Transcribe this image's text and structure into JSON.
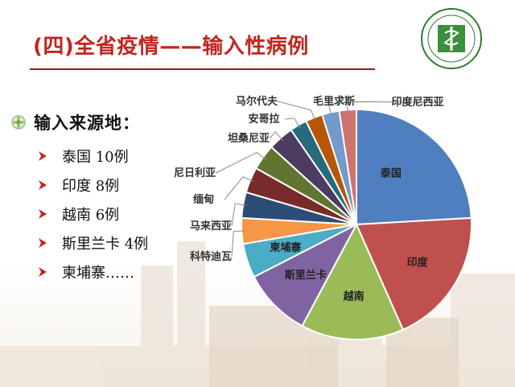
{
  "slide": {
    "title": "(四)全省疫情——输入性病例",
    "source_heading": "输入来源地：",
    "items": [
      {
        "label": "泰国  10例"
      },
      {
        "label": "印度  8例"
      },
      {
        "label": "越南  6例"
      },
      {
        "label": "斯里兰卡  4例"
      },
      {
        "label": "柬埔寨……"
      }
    ],
    "icons": {
      "bullet": "flower-bullet-icon",
      "arrow": "arrow-right-icon",
      "logo": "hospital-logo"
    }
  },
  "chart_data": {
    "type": "pie",
    "categories": [
      "泰国",
      "印度",
      "越南",
      "斯里兰卡",
      "柬埔寨",
      "科特迪瓦",
      "马来西亚",
      "缅甸",
      "尼日利亚",
      "坦桑尼亚",
      "安哥拉",
      "马尔代夫",
      "毛里求斯",
      "印度尼西亚"
    ],
    "values": [
      10,
      8,
      6,
      4,
      2,
      1.5,
      1.5,
      1.5,
      1.5,
      1.5,
      1,
      1,
      1,
      1
    ],
    "colors": [
      "#4f7fbf",
      "#c0504d",
      "#9bbb59",
      "#8064a2",
      "#4bacc6",
      "#f79646",
      "#2c4d75",
      "#772c2a",
      "#5f7530",
      "#4d3b62",
      "#276a7c",
      "#b65708",
      "#729aca",
      "#cd7371"
    ],
    "inside_labels": [
      "泰国",
      "印度",
      "越南",
      "斯里兰卡",
      "柬埔寨"
    ],
    "start_angle_deg": 0,
    "direction": "clockwise"
  }
}
